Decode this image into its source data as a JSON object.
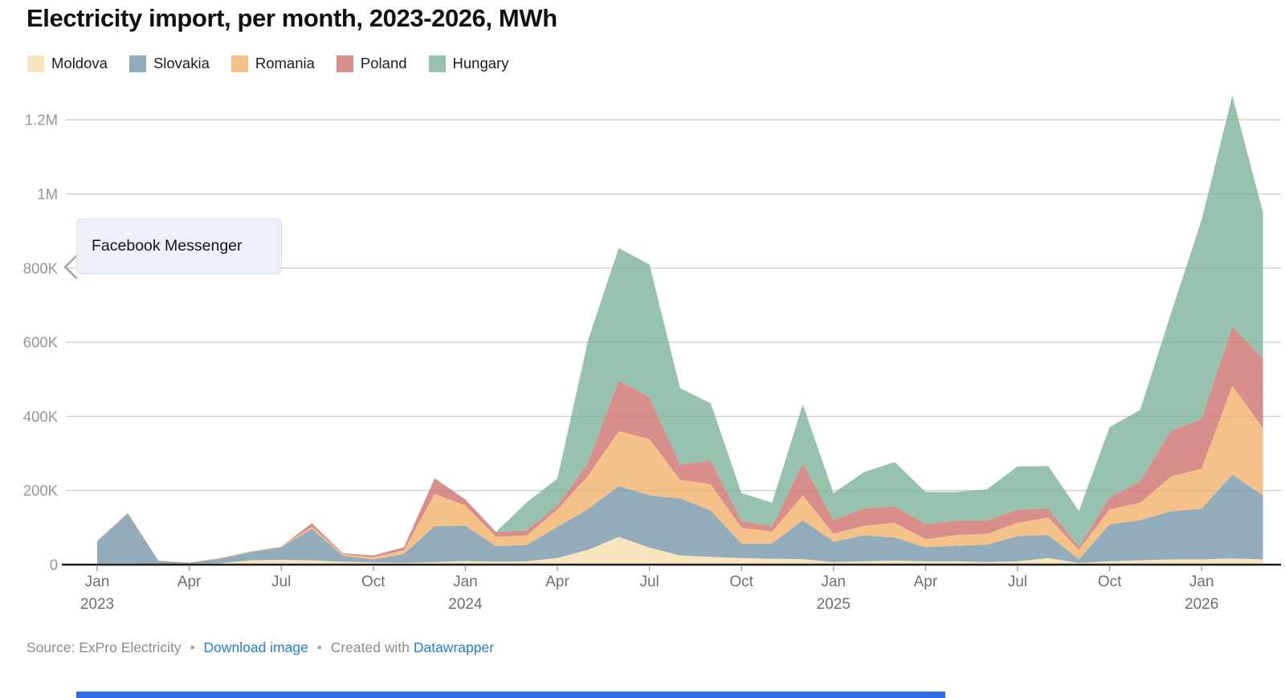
{
  "header": {
    "title": "Electricity import, per month, 2023-2026, MWh"
  },
  "legend": {
    "items": [
      {
        "label": "Moldova",
        "color": "#F8E4BE"
      },
      {
        "label": "Slovakia",
        "color": "#92ACBB"
      },
      {
        "label": "Romania",
        "color": "#F4C189"
      },
      {
        "label": "Poland",
        "color": "#D88E8A"
      },
      {
        "label": "Hungary",
        "color": "#97C2AE"
      }
    ]
  },
  "overlay": {
    "label": "Facebook Messenger"
  },
  "footer": {
    "source_label": "Source:",
    "source_name": "ExPro Electricity",
    "separator": "•",
    "download_link": "Download image",
    "created_prefix": "Created with",
    "tool_link": "Datawrapper"
  },
  "accent": {
    "bottom_bar_color": "#2D6BE4",
    "link_color": "#1E7FDB"
  },
  "chart_data": {
    "type": "area",
    "stacked": true,
    "title": "Electricity import, per month, 2023-2026, MWh",
    "unit": "MWh",
    "grid": true,
    "legend_position": "top",
    "ylim": [
      0,
      1300000
    ],
    "x": [
      "2023-01",
      "2023-02",
      "2023-03",
      "2023-04",
      "2023-05",
      "2023-06",
      "2023-07",
      "2023-08",
      "2023-09",
      "2023-10",
      "2023-11",
      "2023-12",
      "2024-01",
      "2024-02",
      "2024-03",
      "2024-04",
      "2024-05",
      "2024-06",
      "2024-07",
      "2024-08",
      "2024-09",
      "2024-10",
      "2024-11",
      "2024-12",
      "2025-01",
      "2025-02",
      "2025-03",
      "2025-04",
      "2025-05",
      "2025-06",
      "2025-07",
      "2025-08",
      "2025-09",
      "2025-10",
      "2025-11",
      "2025-12",
      "2026-01",
      "2026-02",
      "2026-03"
    ],
    "y_axis": {
      "ticks": [
        {
          "value": 0,
          "label": "0"
        },
        {
          "value": 200000,
          "label": "200K"
        },
        {
          "value": 400000,
          "label": "400K"
        },
        {
          "value": 600000,
          "label": "600K"
        },
        {
          "value": 800000,
          "label": "800K"
        },
        {
          "value": 1000000,
          "label": "1M"
        },
        {
          "value": 1200000,
          "label": "1.2M"
        }
      ]
    },
    "x_axis": {
      "ticks": [
        {
          "index": 0,
          "month": "Jan",
          "year": "2023"
        },
        {
          "index": 3,
          "month": "Apr",
          "year": ""
        },
        {
          "index": 6,
          "month": "Jul",
          "year": ""
        },
        {
          "index": 9,
          "month": "Oct",
          "year": ""
        },
        {
          "index": 12,
          "month": "Jan",
          "year": "2024"
        },
        {
          "index": 15,
          "month": "Apr",
          "year": ""
        },
        {
          "index": 18,
          "month": "Jul",
          "year": ""
        },
        {
          "index": 21,
          "month": "Oct",
          "year": ""
        },
        {
          "index": 24,
          "month": "Jan",
          "year": "2025"
        },
        {
          "index": 27,
          "month": "Apr",
          "year": ""
        },
        {
          "index": 30,
          "month": "Jul",
          "year": ""
        },
        {
          "index": 33,
          "month": "Oct",
          "year": ""
        },
        {
          "index": 36,
          "month": "Jan",
          "year": "2026"
        }
      ]
    },
    "series": [
      {
        "name": "Moldova",
        "color": "#F8E4BE",
        "values": [
          3000,
          3000,
          2000,
          2000,
          4000,
          12000,
          13000,
          12000,
          8000,
          6000,
          5000,
          7000,
          10000,
          8000,
          9000,
          18000,
          40000,
          75000,
          46000,
          25000,
          21000,
          18000,
          16000,
          15000,
          7000,
          9000,
          11000,
          9000,
          9000,
          7000,
          9000,
          18000,
          5000,
          9000,
          12000,
          14000,
          14000,
          17000,
          14000
        ]
      },
      {
        "name": "Slovakia",
        "color": "#92ACBB",
        "values": [
          60000,
          135000,
          8000,
          3000,
          12000,
          22000,
          34000,
          85000,
          16000,
          8000,
          24000,
          97000,
          95000,
          42000,
          44000,
          84000,
          110000,
          137000,
          141000,
          154000,
          125000,
          39000,
          41000,
          105000,
          55000,
          70000,
          62000,
          38000,
          42000,
          47000,
          68000,
          62000,
          9000,
          100000,
          108000,
          130000,
          137000,
          226000,
          173000
        ]
      },
      {
        "name": "Romania",
        "color": "#F4C189",
        "values": [
          2000,
          2000,
          1000,
          1000,
          2000,
          2000,
          2000,
          5000,
          4000,
          6000,
          10000,
          87000,
          55000,
          25000,
          26000,
          47000,
          90000,
          148000,
          152000,
          50000,
          71000,
          43000,
          32000,
          67000,
          22000,
          26000,
          40000,
          22000,
          29000,
          29000,
          36000,
          47000,
          26000,
          40000,
          47000,
          94000,
          108000,
          240000,
          181000
        ]
      },
      {
        "name": "Poland",
        "color": "#D88E8A",
        "values": [
          0,
          0,
          0,
          0,
          0,
          0,
          0,
          10000,
          3000,
          5000,
          8000,
          42000,
          16000,
          13000,
          13000,
          11000,
          35000,
          137000,
          112000,
          41000,
          64000,
          18000,
          14000,
          87000,
          36000,
          47000,
          44000,
          40000,
          39000,
          36000,
          36000,
          25000,
          7000,
          33000,
          58000,
          123000,
          134000,
          159000,
          188000
        ]
      },
      {
        "name": "Hungary",
        "color": "#97C2AE",
        "values": [
          0,
          0,
          0,
          0,
          0,
          0,
          0,
          0,
          0,
          0,
          0,
          0,
          0,
          0,
          76000,
          72000,
          330000,
          357000,
          359000,
          206000,
          154000,
          75000,
          64000,
          158000,
          73000,
          98000,
          120000,
          87000,
          77000,
          84000,
          116000,
          114000,
          98000,
          189000,
          193000,
          317000,
          537000,
          623000,
          394000
        ]
      }
    ]
  }
}
